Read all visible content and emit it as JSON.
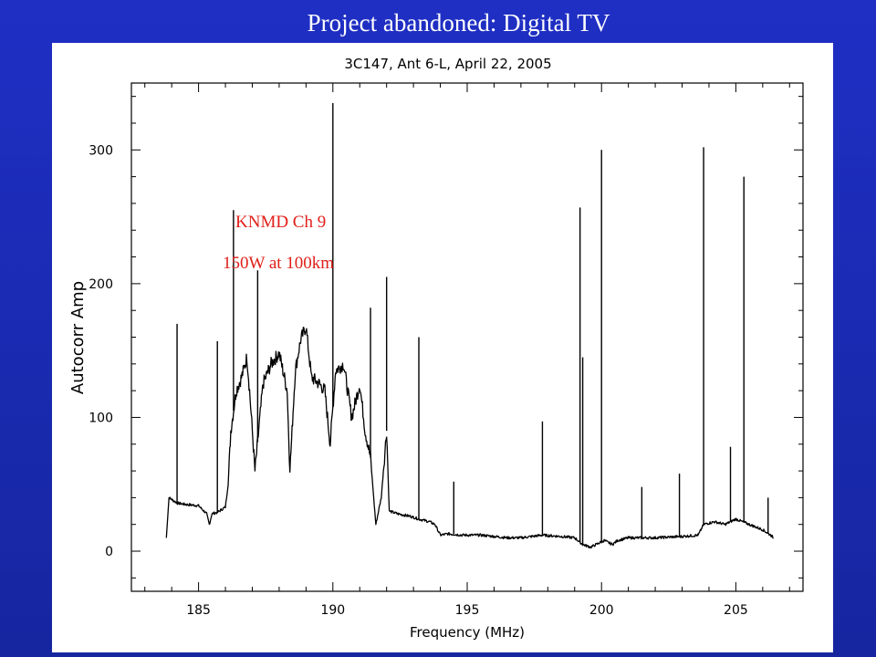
{
  "slide": {
    "title": "Project abandoned:  Digital TV"
  },
  "annotations": [
    {
      "text": "KNMD Ch 9"
    },
    {
      "text": "150W at 100km"
    }
  ],
  "chart_data": {
    "type": "line",
    "title": "3C147, Ant 6-L, April 22, 2005",
    "xlabel": "Frequency (MHz)",
    "ylabel": "Autocorr Amp",
    "xlim": [
      182.5,
      207.5
    ],
    "ylim": [
      -30,
      350
    ],
    "xticks": [
      185,
      190,
      195,
      200,
      205
    ],
    "yticks": [
      0,
      100,
      200,
      300
    ],
    "xtick_labels": [
      "185",
      "190",
      "195",
      "200",
      "205"
    ],
    "ytick_labels": [
      "0",
      "100",
      "200",
      "300"
    ],
    "grid": false,
    "series": [
      {
        "values_note": "",
        "x": [
          183.8,
          183.9,
          184.2,
          184.5,
          185.0,
          185.3,
          185.4,
          185.5,
          185.7,
          186.0,
          186.1,
          186.2,
          186.4,
          186.6,
          186.8,
          186.9,
          187.1,
          187.4,
          187.7,
          188.0,
          188.3,
          188.4,
          188.6,
          188.8,
          189.0,
          189.2,
          189.5,
          189.7,
          189.9,
          190.1,
          190.4,
          190.7,
          191.0,
          191.2,
          191.4,
          191.6,
          191.8,
          192.0,
          192.1,
          192.4,
          192.9,
          193.2,
          193.6,
          193.8,
          194.0,
          194.3,
          194.8,
          195.5,
          196.0,
          196.5,
          197.0,
          197.8,
          198.5,
          199.0,
          199.3,
          199.6,
          199.9,
          200.1,
          200.4,
          200.6,
          201.0,
          202.0,
          203.0,
          203.6,
          203.8,
          204.2,
          204.6,
          205.0,
          205.5,
          206.0,
          206.3,
          206.4
        ],
        "y": [
          10,
          40,
          36,
          35,
          34,
          28,
          20,
          28,
          29,
          33,
          50,
          90,
          120,
          130,
          145,
          120,
          60,
          125,
          140,
          148,
          120,
          60,
          135,
          158,
          168,
          130,
          125,
          120,
          80,
          135,
          140,
          100,
          125,
          90,
          70,
          20,
          40,
          90,
          30,
          28,
          26,
          24,
          22,
          20,
          12,
          13,
          12,
          12,
          11,
          10,
          10,
          12,
          11,
          10,
          5,
          3,
          6,
          8,
          5,
          8,
          10,
          10,
          11,
          12,
          20,
          22,
          20,
          24,
          20,
          16,
          12,
          10
        ]
      }
    ],
    "spikes": [
      {
        "x": 184.2,
        "top": 170
      },
      {
        "x": 185.7,
        "top": 157
      },
      {
        "x": 186.3,
        "top": 255
      },
      {
        "x": 187.2,
        "top": 210
      },
      {
        "x": 190.0,
        "top": 335
      },
      {
        "x": 191.4,
        "top": 182
      },
      {
        "x": 192.0,
        "top": 205
      },
      {
        "x": 193.2,
        "top": 160
      },
      {
        "x": 194.5,
        "top": 52
      },
      {
        "x": 197.8,
        "top": 97
      },
      {
        "x": 199.2,
        "top": 257
      },
      {
        "x": 199.3,
        "top": 145
      },
      {
        "x": 200.0,
        "top": 300
      },
      {
        "x": 201.5,
        "top": 48
      },
      {
        "x": 202.9,
        "top": 58
      },
      {
        "x": 203.8,
        "top": 302
      },
      {
        "x": 204.8,
        "top": 78
      },
      {
        "x": 205.3,
        "top": 280
      },
      {
        "x": 206.2,
        "top": 40
      }
    ]
  }
}
